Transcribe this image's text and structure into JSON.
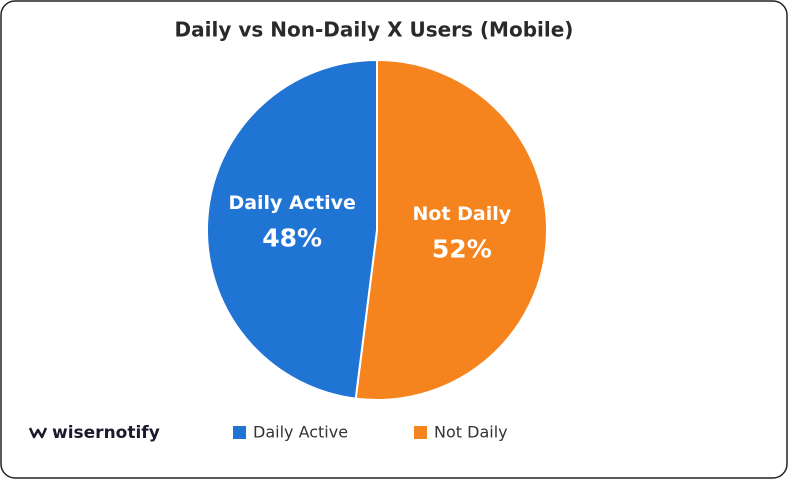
{
  "chart_data": {
    "type": "pie",
    "title": "Daily vs Non-Daily X Users (Mobile)",
    "categories": [
      "Daily Active",
      "Not Daily"
    ],
    "values": [
      48,
      52
    ],
    "value_labels": [
      "48%",
      "52%"
    ],
    "colors": [
      "#1f74d4",
      "#f5841f"
    ],
    "legend": "bottom",
    "source": "wisernotify"
  }
}
